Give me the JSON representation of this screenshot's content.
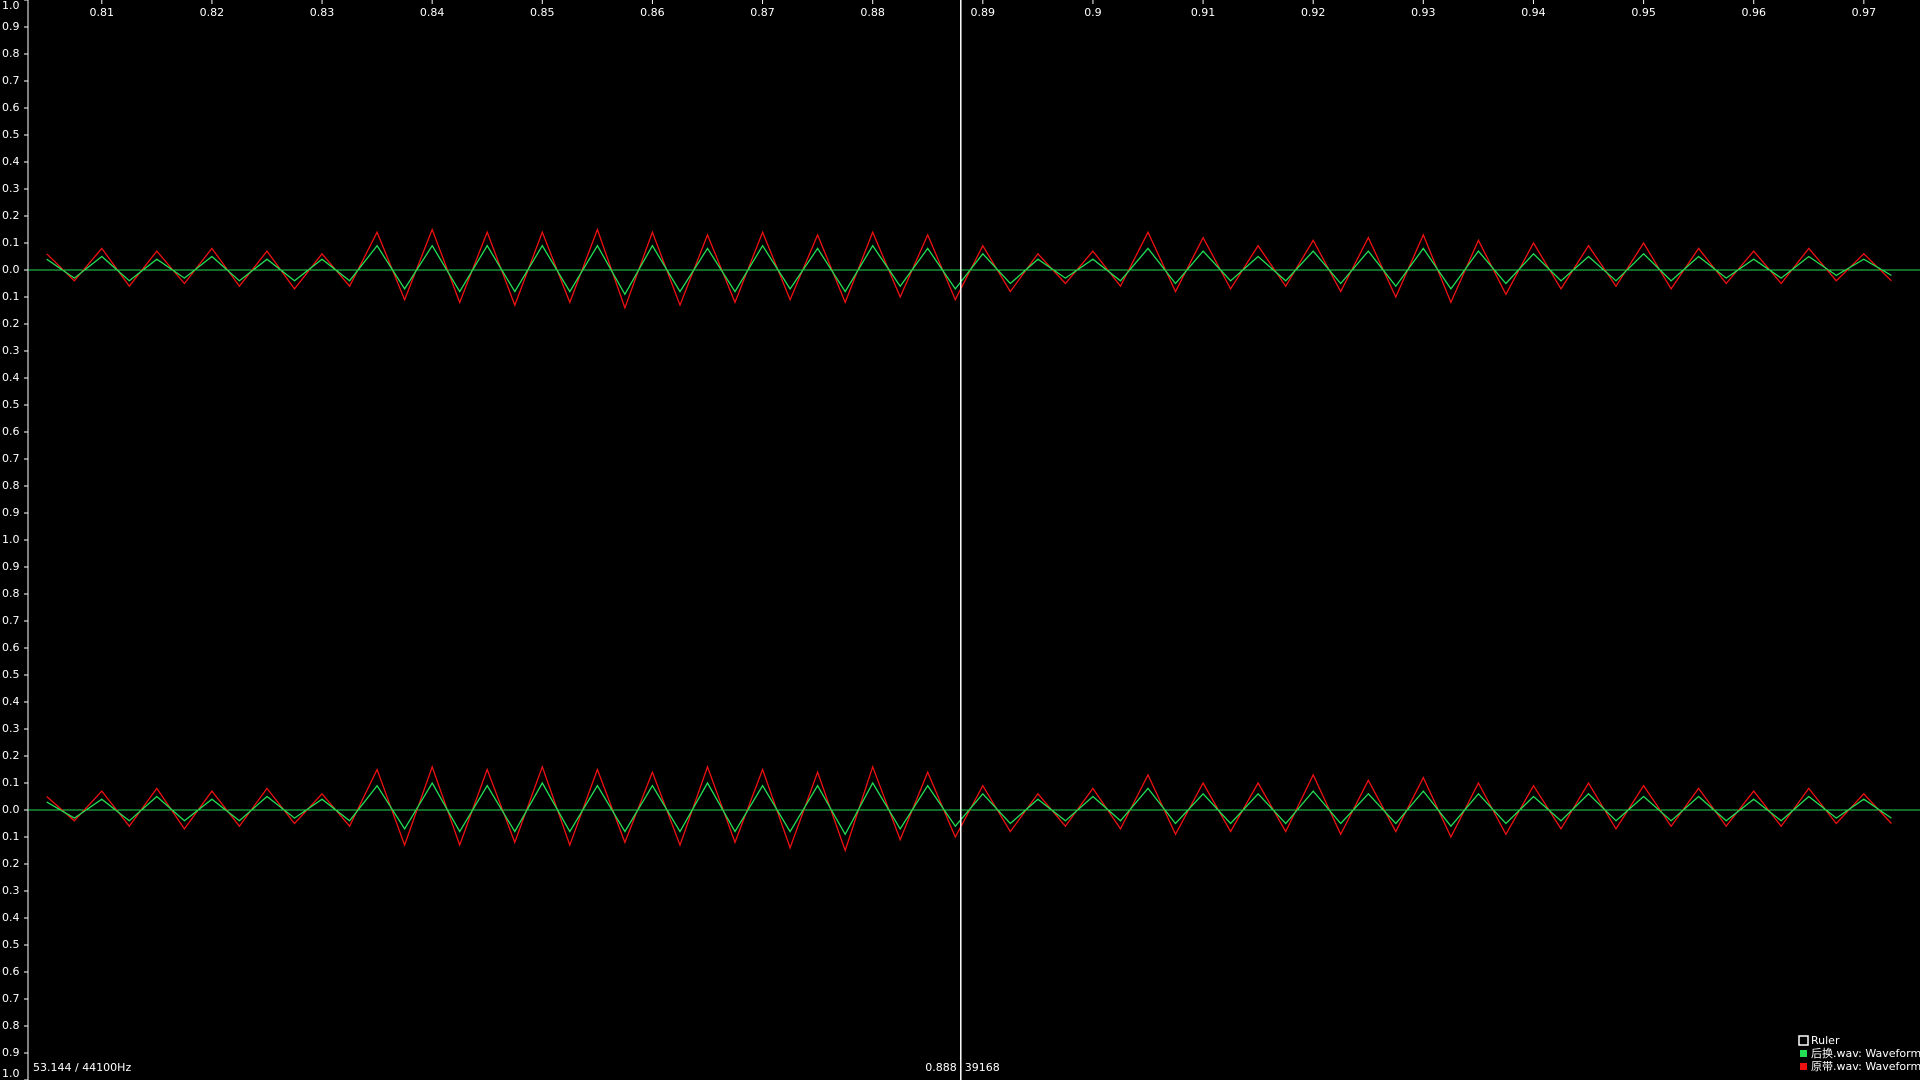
{
  "chart_data": [
    {
      "type": "line",
      "x": [
        0.805,
        0.8075,
        0.81,
        0.8125,
        0.815,
        0.8175,
        0.82,
        0.8225,
        0.825,
        0.8275,
        0.83,
        0.8325,
        0.835,
        0.8375,
        0.84,
        0.8425,
        0.845,
        0.8475,
        0.85,
        0.8525,
        0.855,
        0.8575,
        0.86,
        0.8625,
        0.865,
        0.8675,
        0.87,
        0.8725,
        0.875,
        0.8775,
        0.88,
        0.8825,
        0.885,
        0.8875,
        0.89,
        0.8925,
        0.895,
        0.8975,
        0.9,
        0.9025,
        0.905,
        0.9075,
        0.91,
        0.9125,
        0.915,
        0.9175,
        0.92,
        0.9225,
        0.925,
        0.9275,
        0.93,
        0.9325,
        0.935,
        0.9375,
        0.94,
        0.9425,
        0.945,
        0.9475,
        0.95,
        0.9525,
        0.955,
        0.9575,
        0.96,
        0.9625,
        0.965,
        0.9675,
        0.97,
        0.9725
      ],
      "xlim": [
        0.8033,
        0.9751
      ],
      "xticks": [
        0.81,
        0.82,
        0.83,
        0.84,
        0.85,
        0.86,
        0.87,
        0.88,
        0.89,
        0.9,
        0.91,
        0.92,
        0.93,
        0.94,
        0.95,
        0.96,
        0.97
      ],
      "ylim": [
        -1,
        1
      ],
      "yticks": [
        {
          "value": 1,
          "label": "1.0"
        },
        0.9,
        0.8,
        0.7,
        0.6,
        0.5,
        0.4,
        0.3,
        0.2,
        0.1,
        {
          "value": 0,
          "label": "0.0"
        },
        {
          "value": -0.1,
          "label": "0.1"
        },
        {
          "value": -0.2,
          "label": "0.2"
        },
        {
          "value": -0.3,
          "label": "0.3"
        },
        {
          "value": -0.4,
          "label": "0.4"
        },
        {
          "value": -0.5,
          "label": "0.5"
        },
        {
          "value": -0.6,
          "label": "0.6"
        },
        {
          "value": -0.7,
          "label": "0.7"
        },
        {
          "value": -0.8,
          "label": "0.8"
        },
        {
          "value": -0.9,
          "label": "0.9"
        }
      ],
      "series": [
        {
          "name": "后换.wav: Waveform",
          "color": "#22dd55",
          "values": [
            0.04,
            -0.03,
            0.05,
            -0.04,
            0.04,
            -0.03,
            0.05,
            -0.04,
            0.04,
            -0.04,
            0.04,
            -0.04,
            0.09,
            -0.07,
            0.09,
            -0.08,
            0.09,
            -0.08,
            0.09,
            -0.08,
            0.09,
            -0.09,
            0.09,
            -0.08,
            0.08,
            -0.08,
            0.09,
            -0.07,
            0.08,
            -0.08,
            0.09,
            -0.06,
            0.08,
            -0.07,
            0.06,
            -0.05,
            0.04,
            -0.03,
            0.04,
            -0.04,
            0.08,
            -0.05,
            0.07,
            -0.04,
            0.05,
            -0.04,
            0.07,
            -0.05,
            0.07,
            -0.06,
            0.08,
            -0.07,
            0.07,
            -0.05,
            0.06,
            -0.04,
            0.05,
            -0.04,
            0.06,
            -0.04,
            0.05,
            -0.03,
            0.04,
            -0.03,
            0.05,
            -0.02,
            0.04,
            -0.02
          ]
        },
        {
          "name": "原带.wav: Waveform",
          "color": "#ee1111",
          "values": [
            0.06,
            -0.04,
            0.08,
            -0.06,
            0.07,
            -0.05,
            0.08,
            -0.06,
            0.07,
            -0.07,
            0.06,
            -0.06,
            0.14,
            -0.11,
            0.15,
            -0.12,
            0.14,
            -0.13,
            0.14,
            -0.12,
            0.15,
            -0.14,
            0.14,
            -0.13,
            0.13,
            -0.12,
            0.14,
            -0.11,
            0.13,
            -0.12,
            0.14,
            -0.1,
            0.13,
            -0.11,
            0.09,
            -0.08,
            0.06,
            -0.05,
            0.07,
            -0.06,
            0.14,
            -0.08,
            0.12,
            -0.07,
            0.09,
            -0.06,
            0.11,
            -0.08,
            0.12,
            -0.1,
            0.13,
            -0.12,
            0.11,
            -0.09,
            0.1,
            -0.07,
            0.09,
            -0.06,
            0.1,
            -0.07,
            0.08,
            -0.05,
            0.07,
            -0.05,
            0.08,
            -0.04,
            0.06,
            -0.04
          ]
        }
      ],
      "legend": "bottom-right",
      "ruler_label": "Ruler",
      "cursor": {
        "x": 0.888,
        "sample": 39168
      },
      "status": "53.144 / 44100Hz"
    },
    {
      "type": "line",
      "ylim": [
        -1,
        1
      ],
      "yticks": [
        {
          "value": 1,
          "label": "1.0"
        },
        0.9,
        0.8,
        0.7,
        0.6,
        0.5,
        0.4,
        0.3,
        0.2,
        0.1,
        {
          "value": 0,
          "label": "0.0"
        },
        {
          "value": -0.1,
          "label": "0.1"
        },
        {
          "value": -0.2,
          "label": "0.2"
        },
        {
          "value": -0.3,
          "label": "0.3"
        },
        {
          "value": -0.4,
          "label": "0.4"
        },
        {
          "value": -0.5,
          "label": "0.5"
        },
        {
          "value": -0.6,
          "label": "0.6"
        },
        {
          "value": -0.7,
          "label": "0.7"
        },
        {
          "value": -0.8,
          "label": "0.8"
        },
        {
          "value": -0.9,
          "label": "0.9"
        },
        {
          "value": -1,
          "label": "1.0"
        }
      ],
      "series": [
        {
          "values": [
            0.03,
            -0.03,
            0.04,
            -0.04,
            0.05,
            -0.04,
            0.04,
            -0.04,
            0.05,
            -0.03,
            0.04,
            -0.04,
            0.09,
            -0.07,
            0.1,
            -0.08,
            0.09,
            -0.08,
            0.1,
            -0.08,
            0.09,
            -0.08,
            0.09,
            -0.08,
            0.1,
            -0.08,
            0.09,
            -0.08,
            0.09,
            -0.09,
            0.1,
            -0.07,
            0.09,
            -0.06,
            0.06,
            -0.05,
            0.04,
            -0.04,
            0.05,
            -0.04,
            0.08,
            -0.05,
            0.06,
            -0.05,
            0.06,
            -0.05,
            0.07,
            -0.05,
            0.06,
            -0.05,
            0.07,
            -0.06,
            0.06,
            -0.05,
            0.05,
            -0.04,
            0.06,
            -0.04,
            0.05,
            -0.04,
            0.05,
            -0.04,
            0.04,
            -0.04,
            0.05,
            -0.03,
            0.04,
            -0.03
          ]
        },
        {
          "values": [
            0.05,
            -0.04,
            0.07,
            -0.06,
            0.08,
            -0.07,
            0.07,
            -0.06,
            0.08,
            -0.05,
            0.06,
            -0.06,
            0.15,
            -0.13,
            0.16,
            -0.13,
            0.15,
            -0.12,
            0.16,
            -0.13,
            0.15,
            -0.12,
            0.14,
            -0.13,
            0.16,
            -0.12,
            0.15,
            -0.14,
            0.14,
            -0.15,
            0.16,
            -0.11,
            0.14,
            -0.1,
            0.09,
            -0.08,
            0.06,
            -0.06,
            0.08,
            -0.07,
            0.13,
            -0.09,
            0.1,
            -0.08,
            0.1,
            -0.08,
            0.13,
            -0.09,
            0.11,
            -0.08,
            0.12,
            -0.1,
            0.1,
            -0.09,
            0.09,
            -0.07,
            0.1,
            -0.07,
            0.09,
            -0.06,
            0.08,
            -0.06,
            0.07,
            -0.06,
            0.08,
            -0.05,
            0.06,
            -0.05
          ]
        }
      ]
    }
  ]
}
